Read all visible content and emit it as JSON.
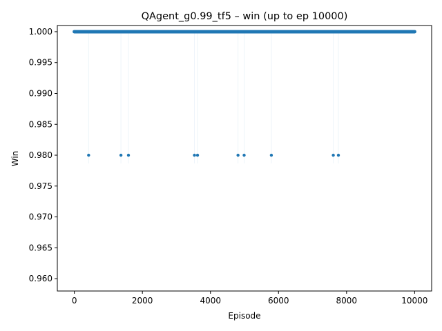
{
  "chart_data": {
    "type": "scatter",
    "title": "QAgent_g0.99_tf5 – win (up to ep 10000)",
    "xlabel": "Episode",
    "ylabel": "Win",
    "xlim": [
      -500,
      10500
    ],
    "ylim": [
      0.958,
      1.001
    ],
    "xticks": [
      0,
      2000,
      4000,
      6000,
      8000,
      10000
    ],
    "xtick_labels": [
      "0",
      "2000",
      "4000",
      "6000",
      "8000",
      "10000"
    ],
    "yticks": [
      0.96,
      0.965,
      0.97,
      0.975,
      0.98,
      0.985,
      0.99,
      0.995,
      1.0
    ],
    "ytick_labels": [
      "0.960",
      "0.965",
      "0.970",
      "0.975",
      "0.980",
      "0.985",
      "0.990",
      "0.995",
      "1.000"
    ],
    "series_color": "#1f77b4",
    "grid": false,
    "legend": "none",
    "baseline": {
      "value": 1.0,
      "x_start": 0,
      "x_end": 10000,
      "note_repeated_points": true
    },
    "points": [
      {
        "x": 420,
        "y": 0.98
      },
      {
        "x": 1370,
        "y": 0.98
      },
      {
        "x": 1590,
        "y": 0.98
      },
      {
        "x": 3530,
        "y": 0.98
      },
      {
        "x": 3620,
        "y": 0.98
      },
      {
        "x": 4810,
        "y": 0.98
      },
      {
        "x": 4990,
        "y": 0.98
      },
      {
        "x": 5790,
        "y": 0.98
      },
      {
        "x": 7610,
        "y": 0.98
      },
      {
        "x": 7760,
        "y": 0.98
      }
    ]
  }
}
